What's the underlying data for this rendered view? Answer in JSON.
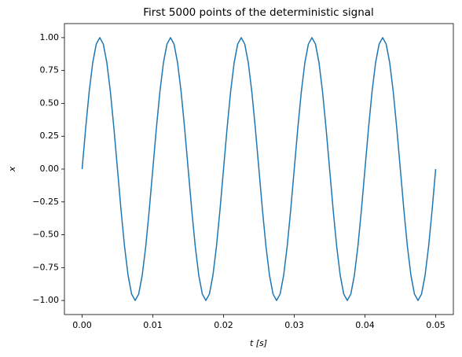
{
  "chart_data": {
    "type": "line",
    "title": "First 5000 points of the deterministic signal",
    "x_label": "t [s]",
    "y_label": "x",
    "xlim": [
      -0.0025,
      0.0525
    ],
    "ylim": [
      -1.107,
      1.107
    ],
    "xticks": [
      {
        "value": 0,
        "label": "0.00"
      },
      0.01,
      0.02,
      0.03,
      0.04,
      0.05
    ],
    "yticks": [
      {
        "value": 1,
        "label": "1.00"
      },
      0.75,
      {
        "value": 0.5,
        "label": "0.50"
      },
      0.25,
      {
        "value": 0,
        "label": "0.00"
      },
      {
        "value": -0.25,
        "label": "−0.25"
      },
      {
        "value": -0.5,
        "label": "−0.50"
      },
      {
        "value": -0.75,
        "label": "−0.75"
      },
      {
        "value": -1,
        "label": "−1.00"
      }
    ],
    "grid": false,
    "x": [
      0,
      0.0005,
      0.001,
      0.0015,
      0.002,
      0.0025,
      0.003,
      0.0035,
      0.004,
      0.0045,
      0.005,
      0.0055,
      0.006,
      0.0065,
      0.007,
      0.0075,
      0.008,
      0.0085,
      0.009,
      0.0095,
      0.01,
      0.0105,
      0.011,
      0.0115,
      0.012,
      0.0125,
      0.013,
      0.0135,
      0.014,
      0.0145,
      0.015,
      0.0155,
      0.016,
      0.0165,
      0.017,
      0.0175,
      0.018,
      0.0185,
      0.019,
      0.0195,
      0.02,
      0.0205,
      0.021,
      0.0215,
      0.022,
      0.0225,
      0.023,
      0.0235,
      0.024,
      0.0245,
      0.025,
      0.0255,
      0.026,
      0.0265,
      0.027,
      0.0275,
      0.028,
      0.0285,
      0.029,
      0.0295,
      0.03,
      0.0305,
      0.031,
      0.0315,
      0.032,
      0.0325,
      0.033,
      0.0335,
      0.034,
      0.0345,
      0.035,
      0.0355,
      0.036,
      0.0365,
      0.037,
      0.0375,
      0.038,
      0.0385,
      0.039,
      0.0395,
      0.04,
      0.0405,
      0.041,
      0.0415,
      0.042,
      0.0425,
      0.043,
      0.0435,
      0.044,
      0.0445,
      0.045,
      0.0455,
      0.046,
      0.0465,
      0.047,
      0.0475,
      0.048,
      0.0485,
      0.049,
      0.0495,
      0.05
    ],
    "series": [
      {
        "color": "#1f77b4",
        "values": [
          0,
          0.309,
          0.588,
          0.809,
          0.951,
          1,
          0.951,
          0.809,
          0.588,
          0.309,
          0,
          -0.309,
          -0.588,
          -0.809,
          -0.951,
          -1,
          -0.951,
          -0.809,
          -0.588,
          -0.309,
          0,
          0.309,
          0.588,
          0.809,
          0.951,
          1,
          0.951,
          0.809,
          0.588,
          0.309,
          0,
          -0.309,
          -0.588,
          -0.809,
          -0.951,
          -1,
          -0.951,
          -0.809,
          -0.588,
          -0.309,
          0,
          0.309,
          0.588,
          0.809,
          0.951,
          1,
          0.951,
          0.809,
          0.588,
          0.309,
          0,
          -0.309,
          -0.588,
          -0.809,
          -0.951,
          -1,
          -0.951,
          -0.809,
          -0.588,
          -0.309,
          0,
          0.309,
          0.588,
          0.809,
          0.951,
          1,
          0.951,
          0.809,
          0.588,
          0.309,
          0,
          -0.309,
          -0.588,
          -0.809,
          -0.951,
          -1,
          -0.951,
          -0.809,
          -0.588,
          -0.309,
          0,
          0.309,
          0.588,
          0.809,
          0.951,
          1,
          0.951,
          0.809,
          0.588,
          0.309,
          0,
          -0.309,
          -0.588,
          -0.809,
          -0.951,
          -1,
          -0.951,
          -0.809,
          -0.588,
          -0.309,
          0
        ]
      }
    ]
  }
}
